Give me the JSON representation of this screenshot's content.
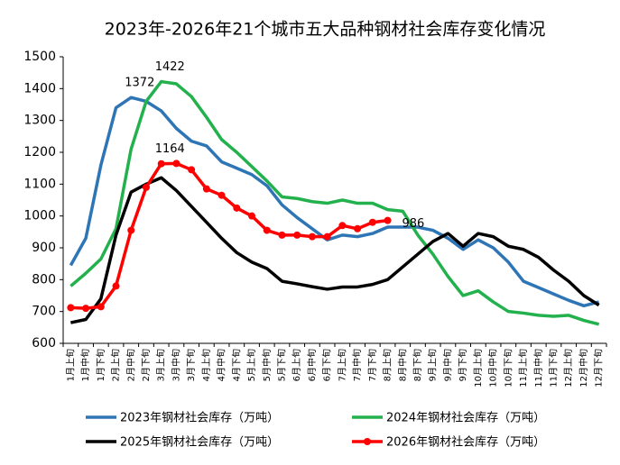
{
  "chart_data": {
    "type": "line",
    "title": "2023年-2026年21个城市五大品种钢材社会库存变化情况",
    "categories": [
      "1月上旬",
      "1月中旬",
      "1月下旬",
      "2月上旬",
      "2月中旬",
      "2月下旬",
      "3月上旬",
      "3月中旬",
      "3月下旬",
      "4月上旬",
      "4月中旬",
      "4月下旬",
      "5月上旬",
      "5月中旬",
      "5月下旬",
      "6月上旬",
      "6月中旬",
      "6月下旬",
      "7月上旬",
      "7月中旬",
      "7月下旬",
      "8月上旬",
      "8月中旬",
      "8月下旬",
      "9月上旬",
      "9月中旬",
      "9月下旬",
      "10月上旬",
      "10月中旬",
      "10月下旬",
      "11月上旬",
      "11月中旬",
      "11月下旬",
      "12月上旬",
      "12月中旬",
      "12月下旬"
    ],
    "ylim": [
      600,
      1500
    ],
    "yticks": [
      600,
      700,
      800,
      900,
      1000,
      1100,
      1200,
      1300,
      1400,
      1500
    ],
    "grid": false,
    "legend": "bottom",
    "series": [
      {
        "name": "2023年钢材社会库存（万吨）",
        "color": "#2e75b6",
        "marker": false,
        "values": [
          845,
          930,
          1160,
          1340,
          1372,
          1360,
          1330,
          1275,
          1235,
          1220,
          1170,
          1150,
          1130,
          1095,
          1035,
          995,
          960,
          925,
          940,
          935,
          945,
          965,
          965,
          965,
          955,
          930,
          895,
          925,
          900,
          855,
          795,
          775,
          755,
          735,
          718,
          730
        ],
        "value_labels": [
          null,
          null,
          null,
          null,
          "1372",
          null,
          null,
          null,
          null,
          null,
          null,
          null,
          null,
          null,
          null,
          null,
          null,
          null,
          null,
          null,
          null,
          null,
          null,
          null,
          null,
          null,
          null,
          null,
          null,
          null,
          null,
          null,
          null,
          null,
          null,
          null
        ]
      },
      {
        "name": "2024年钢材社会库存（万吨）",
        "color": "#22b14c",
        "marker": false,
        "values": [
          780,
          820,
          865,
          960,
          1210,
          1360,
          1422,
          1415,
          1375,
          1310,
          1240,
          1200,
          1155,
          1110,
          1060,
          1055,
          1045,
          1040,
          1050,
          1040,
          1040,
          1020,
          1015,
          940,
          880,
          810,
          750,
          765,
          730,
          700,
          695,
          688,
          685,
          688,
          672,
          660
        ],
        "value_labels": [
          null,
          null,
          null,
          null,
          null,
          null,
          "1422",
          null,
          null,
          null,
          null,
          null,
          null,
          null,
          null,
          null,
          null,
          null,
          null,
          null,
          null,
          null,
          null,
          null,
          null,
          null,
          null,
          null,
          null,
          null,
          null,
          null,
          null,
          null,
          null,
          null
        ]
      },
      {
        "name": "2025年钢材社会库存（万吨）",
        "color": "#000000",
        "marker": false,
        "values": [
          665,
          675,
          740,
          940,
          1075,
          1100,
          1120,
          1080,
          1030,
          980,
          930,
          885,
          855,
          835,
          795,
          787,
          778,
          770,
          777,
          777,
          785,
          800,
          840,
          880,
          920,
          945,
          905,
          945,
          935,
          905,
          895,
          870,
          830,
          795,
          750,
          720
        ]
      },
      {
        "name": "2026年钢材社会库存（万吨）",
        "color": "#ff0000",
        "marker": true,
        "values": [
          712,
          710,
          715,
          780,
          955,
          1090,
          1164,
          1165,
          1145,
          1085,
          1065,
          1025,
          1000,
          955,
          940,
          940,
          935,
          935,
          970,
          960,
          980,
          986,
          null,
          null,
          null,
          null,
          null,
          null,
          null,
          null,
          null,
          null,
          null,
          null,
          null,
          null
        ],
        "value_labels": [
          null,
          null,
          null,
          null,
          null,
          null,
          "1164",
          null,
          null,
          null,
          null,
          null,
          null,
          null,
          null,
          null,
          null,
          null,
          null,
          null,
          null,
          "986",
          null,
          null,
          null,
          null,
          null,
          null,
          null,
          null,
          null,
          null,
          null,
          null,
          null,
          null
        ]
      }
    ]
  }
}
